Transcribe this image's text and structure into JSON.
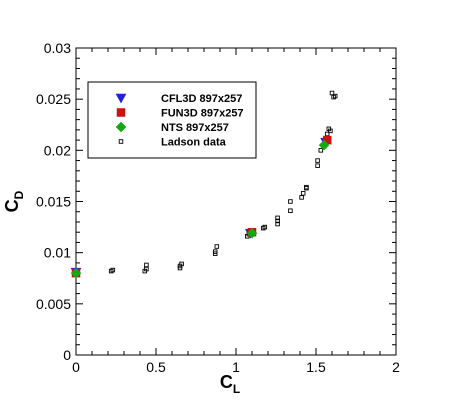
{
  "chart_data": {
    "type": "scatter",
    "title": "",
    "xlabel": {
      "main": "C",
      "sub": "L"
    },
    "ylabel": {
      "main": "C",
      "sub": "D"
    },
    "xlim": [
      0,
      2
    ],
    "ylim": [
      0,
      0.03
    ],
    "xticks": [
      0,
      0.5,
      1,
      1.5,
      2
    ],
    "xtick_labels": [
      "0",
      "0.5",
      "1",
      "1.5",
      "2"
    ],
    "yticks": [
      0,
      0.005,
      0.01,
      0.015,
      0.02,
      0.025,
      0.03
    ],
    "ytick_labels": [
      "0",
      "0.005",
      "0.01",
      "0.015",
      "0.02",
      "0.025",
      "0.03"
    ],
    "grid": false,
    "legend": {
      "placement": "upper-left-inside"
    },
    "series": [
      {
        "name": "CFL3D 897x257",
        "marker": "triangle-down",
        "color": "#2222dd",
        "x": [
          0.0,
          1.09,
          1.56
        ],
        "y": [
          0.0081,
          0.0119,
          0.0208
        ]
      },
      {
        "name": "FUN3D 897x257",
        "marker": "square",
        "color": "#cc1111",
        "x": [
          0.0,
          1.1,
          1.57
        ],
        "y": [
          0.008,
          0.012,
          0.021
        ]
      },
      {
        "name": "NTS 897x257",
        "marker": "diamond",
        "color": "#11aa11",
        "x": [
          0.0,
          1.1,
          1.55
        ],
        "y": [
          0.008,
          0.0119,
          0.0205
        ]
      },
      {
        "name": "Ladson data",
        "marker": "open-square",
        "color": "#000000",
        "x": [
          0.0,
          0.22,
          0.23,
          0.43,
          0.44,
          0.44,
          0.65,
          0.65,
          0.66,
          0.87,
          0.87,
          0.88,
          1.07,
          1.08,
          1.09,
          1.17,
          1.18,
          1.26,
          1.26,
          1.26,
          1.34,
          1.34,
          1.41,
          1.42,
          1.44,
          1.44,
          1.51,
          1.51,
          1.53,
          1.55,
          1.56,
          1.57,
          1.58,
          1.59,
          1.6,
          1.61,
          1.62
        ],
        "y": [
          0.0079,
          0.0082,
          0.0083,
          0.0082,
          0.0084,
          0.0088,
          0.0085,
          0.0087,
          0.0089,
          0.0099,
          0.0101,
          0.0106,
          0.0116,
          0.0118,
          0.012,
          0.0124,
          0.0125,
          0.0128,
          0.0131,
          0.0134,
          0.0141,
          0.015,
          0.0154,
          0.0158,
          0.0163,
          0.0164,
          0.0185,
          0.019,
          0.02,
          0.0204,
          0.021,
          0.0216,
          0.0221,
          0.0219,
          0.0256,
          0.0252,
          0.0253
        ]
      }
    ]
  }
}
